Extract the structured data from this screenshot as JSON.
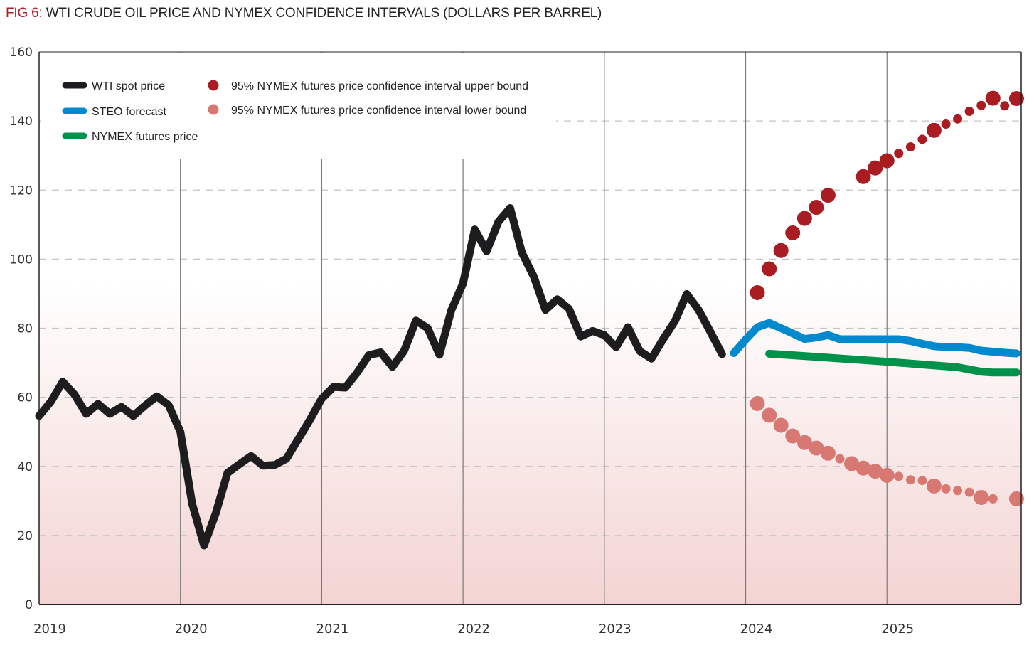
{
  "header": {
    "fig_label": "FIG 6:",
    "title": "WTI CRUDE OIL PRICE AND NYMEX CONFIDENCE INTERVALS (DOLLARS PER BARREL)"
  },
  "colors": {
    "wti": "#1d1c1f",
    "steo": "#0089cc",
    "nymex": "#00924a",
    "upper": "#a81c22",
    "lower": "#d87872",
    "fig_label": "#b0202a",
    "bg_top": "#ffffff",
    "bg_bottom": "#f3d4d3"
  },
  "chart_data": {
    "type": "line",
    "title": "WTI CRUDE OIL PRICE AND NYMEX CONFIDENCE INTERVALS (DOLLARS PER BARREL)",
    "xlabel": "",
    "ylabel": "Dollars per barrel",
    "ylim": [
      0,
      160
    ],
    "yticks": [
      0,
      20,
      40,
      60,
      80,
      100,
      120,
      140,
      160
    ],
    "xlim": [
      2019.0,
      2025.95
    ],
    "xticks": [
      2019,
      2020,
      2021,
      2022,
      2023,
      2024,
      2025
    ],
    "xtick_labels": [
      "2019",
      "2020",
      "2021",
      "2022",
      "2023",
      "2024",
      "2025"
    ],
    "grid": "horizontal dashed at y ticks; vertical solid at year boundaries",
    "legend_placement": "top-left",
    "legend": [
      {
        "key": "wti",
        "label": "WTI spot price",
        "marker": "line"
      },
      {
        "key": "steo",
        "label": "STEO forecast",
        "marker": "line"
      },
      {
        "key": "nymex",
        "label": "NYMEX futures price",
        "marker": "line"
      },
      {
        "key": "upper",
        "label": "95% NYMEX futures price confidence interval upper bound",
        "marker": "dot"
      },
      {
        "key": "lower",
        "label": "95% NYMEX futures price confidence interval lower bound",
        "marker": "dot"
      }
    ],
    "series": [
      {
        "name": "WTI spot price",
        "key": "wti",
        "type": "line",
        "x": [
          2019.0,
          2019.083,
          2019.167,
          2019.25,
          2019.333,
          2019.417,
          2019.5,
          2019.583,
          2019.667,
          2019.75,
          2019.833,
          2019.917,
          2020.0,
          2020.083,
          2020.167,
          2020.25,
          2020.333,
          2020.417,
          2020.5,
          2020.583,
          2020.667,
          2020.75,
          2020.833,
          2020.917,
          2021.0,
          2021.083,
          2021.167,
          2021.25,
          2021.333,
          2021.417,
          2021.5,
          2021.583,
          2021.667,
          2021.75,
          2021.833,
          2021.917,
          2022.0,
          2022.083,
          2022.167,
          2022.25,
          2022.333,
          2022.417,
          2022.5,
          2022.583,
          2022.667,
          2022.75,
          2022.833,
          2022.917,
          2023.0,
          2023.083,
          2023.167,
          2023.25,
          2023.333,
          2023.417,
          2023.5,
          2023.583,
          2023.667,
          2023.75,
          2023.833,
          2023.917
        ],
        "values": [
          54.6,
          58.7,
          64.5,
          60.8,
          55.2,
          58.1,
          55.2,
          57.2,
          54.6,
          57.6,
          60.3,
          57.7,
          50.0,
          29.2,
          17.1,
          26.4,
          38.1,
          40.6,
          43.0,
          40.2,
          40.4,
          42.2,
          47.8,
          53.5,
          59.6,
          63.0,
          62.8,
          67.1,
          72.2,
          73.0,
          68.8,
          73.5,
          82.2,
          80.0,
          72.3,
          85.2,
          93.0,
          108.6,
          102.3,
          110.8,
          114.8,
          101.8,
          95.0,
          85.3,
          88.4,
          85.6,
          77.6,
          79.2,
          78.0,
          74.5,
          80.3,
          73.4,
          71.2,
          76.9,
          82.1,
          89.9,
          85.3,
          79.0,
          72.5,
          null
        ]
      },
      {
        "name": "STEO forecast",
        "key": "steo",
        "type": "line",
        "x": [
          2023.917,
          2024.0,
          2024.083,
          2024.167,
          2024.25,
          2024.333,
          2024.417,
          2024.5,
          2024.583,
          2024.667,
          2024.75,
          2024.833,
          2024.917,
          2025.0,
          2025.083,
          2025.167,
          2025.25,
          2025.333,
          2025.417,
          2025.5,
          2025.583,
          2025.667,
          2025.75,
          2025.833,
          2025.917
        ],
        "values": [
          72.8,
          76.7,
          80.3,
          81.5,
          80.0,
          78.5,
          76.9,
          77.3,
          78.0,
          76.8,
          76.8,
          76.8,
          76.8,
          76.8,
          76.8,
          76.3,
          75.5,
          74.8,
          74.5,
          74.5,
          74.3,
          73.5,
          73.2,
          72.9,
          72.7
        ]
      },
      {
        "name": "NYMEX futures price",
        "key": "nymex",
        "type": "line",
        "x": [
          2024.167,
          2024.5,
          2024.75,
          2025.0,
          2025.25,
          2025.5,
          2025.667,
          2025.75,
          2025.917
        ],
        "values": [
          72.6,
          71.7,
          71.0,
          70.3,
          69.5,
          68.7,
          67.4,
          67.2,
          67.2
        ]
      },
      {
        "name": "95% NYMEX futures price confidence interval upper bound",
        "key": "upper",
        "type": "scatter",
        "x": [
          2024.083,
          2024.167,
          2024.25,
          2024.333,
          2024.417,
          2024.5,
          2024.583,
          2024.667,
          2024.833,
          2024.917,
          2025.0,
          2025.083,
          2025.167,
          2025.25,
          2025.333,
          2025.417,
          2025.5,
          2025.583,
          2025.667,
          2025.75,
          2025.833,
          2025.917
        ],
        "values": [
          90.3,
          97.2,
          102.5,
          107.6,
          111.8,
          115.0,
          118.5,
          null,
          123.9,
          126.4,
          128.5,
          130.6,
          132.5,
          134.7,
          137.3,
          139.1,
          140.6,
          142.8,
          144.5,
          146.6,
          null,
          null
        ],
        "sizes": [
          "large",
          "large",
          "large",
          "large",
          "large",
          "large",
          "large",
          "large",
          "large",
          "large",
          "large",
          "small",
          "small",
          "small",
          "large",
          "small",
          "small",
          "small",
          "small",
          "large",
          "small",
          "large"
        ]
      },
      {
        "name": "95% NYMEX futures price confidence interval lower bound",
        "key": "lower",
        "type": "scatter",
        "x": [
          2024.083,
          2024.167,
          2024.25,
          2024.333,
          2024.417,
          2024.5,
          2024.583,
          2024.667,
          2024.75,
          2024.833,
          2024.917,
          2025.0,
          2025.083,
          2025.167,
          2025.25,
          2025.333,
          2025.417,
          2025.5,
          2025.583,
          2025.667,
          2025.75,
          2025.917
        ],
        "values": [
          58.2,
          54.8,
          51.9,
          48.8,
          46.9,
          45.3,
          43.8,
          42.2,
          40.8,
          39.5,
          38.6,
          37.4,
          37.1,
          36.1,
          35.9,
          34.3,
          33.5,
          33.0,
          32.5,
          31.0,
          30.6,
          30.6
        ],
        "sizes": [
          "large",
          "large",
          "large",
          "large",
          "large",
          "large",
          "large",
          "small",
          "large",
          "large",
          "large",
          "large",
          "small",
          "small",
          "small",
          "large",
          "small",
          "small",
          "small",
          "large",
          "small",
          "large"
        ]
      }
    ]
  }
}
